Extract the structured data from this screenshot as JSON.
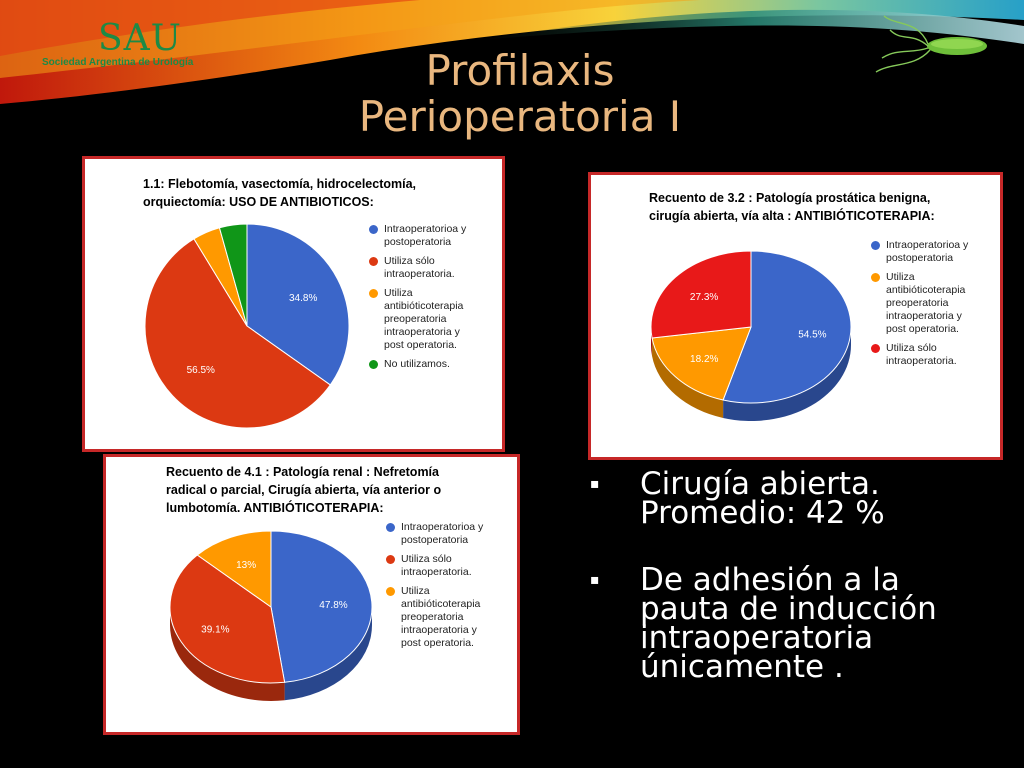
{
  "header": {
    "title_line1": "Profilaxis",
    "title_line2": "Perioperatoria I",
    "logo_mark": "SAU",
    "logo_text": "Sociedad Argentina de Urología"
  },
  "colors": {
    "blue": "#3b66c9",
    "red": "#dc3912",
    "orange": "#ff9900",
    "green": "#109618",
    "red_bright": "#e81919",
    "title": "#e9b77f",
    "frame": "#c62828"
  },
  "bullets": [
    {
      "line1": "Cirugía abierta.",
      "line2": "Promedio: 42 %"
    },
    {
      "line1": "De adhesión a la",
      "line2": "pauta de inducción",
      "line3": "intraoperatoria",
      "line4": "únicamente ."
    }
  ],
  "chart_data": [
    {
      "type": "pie",
      "title_line1": "1.1: Flebotomía, vasectomía, hidrocelectomía,",
      "title_line2": "orquiectomía: USO DE ANTIBIOTICOS:",
      "slices": [
        {
          "label": "Intraoperatorioa y\npostoperatoria",
          "value": 34.8,
          "color": "#3b66c9",
          "data_label": "34.8%"
        },
        {
          "label": "Utiliza sólo\nintraoperatoria.",
          "value": 56.5,
          "color": "#dc3912",
          "data_label": "56.5%"
        },
        {
          "label": "Utiliza\nantibióticoterapia\npreoperatoria\nintraoperatoria y\npost operatoria.",
          "value": 4.35,
          "color": "#ff9900",
          "data_label": ""
        },
        {
          "label": "No utilizamos.",
          "value": 4.35,
          "color": "#109618",
          "data_label": ""
        }
      ]
    },
    {
      "type": "pie",
      "title_line1": "Recuento de 3.2 : Patología prostática benigna,",
      "title_line2": "cirugía abierta, vía alta : ANTIBIÓTICOTERAPIA:",
      "slices": [
        {
          "label": "Intraoperatorioa y\npostoperatoria",
          "value": 54.5,
          "color": "#3b66c9",
          "data_label": "54.5%"
        },
        {
          "label": "Utiliza\nantibióticoterapia\npreoperatoria\nintraoperatoria y\npost operatoria.",
          "value": 18.2,
          "color": "#ff9900",
          "data_label": "18.2%"
        },
        {
          "label": "Utiliza sólo\nintraoperatoria.",
          "value": 27.3,
          "color": "#e81919",
          "data_label": "27.3%"
        }
      ]
    },
    {
      "type": "pie",
      "title_line1": "Recuento de 4.1 : Patología renal : Nefretomía",
      "title_line2": "radical o parcial, Cirugía abierta, vía anterior o",
      "title_line3": "lumbotomía. ANTIBIÓTICOTERAPIA:",
      "slices": [
        {
          "label": "Intraoperatorioa y\npostoperatoria",
          "value": 47.8,
          "color": "#3b66c9",
          "data_label": "47.8%"
        },
        {
          "label": "Utiliza sólo\nintraoperatoria.",
          "value": 39.1,
          "color": "#dc3912",
          "data_label": "39.1%"
        },
        {
          "label": "Utiliza\nantibióticoterapia\npreoperatoria\nintraoperatoria y\npost operatoria.",
          "value": 13.0,
          "color": "#ff9900",
          "data_label": "13%"
        }
      ]
    }
  ]
}
